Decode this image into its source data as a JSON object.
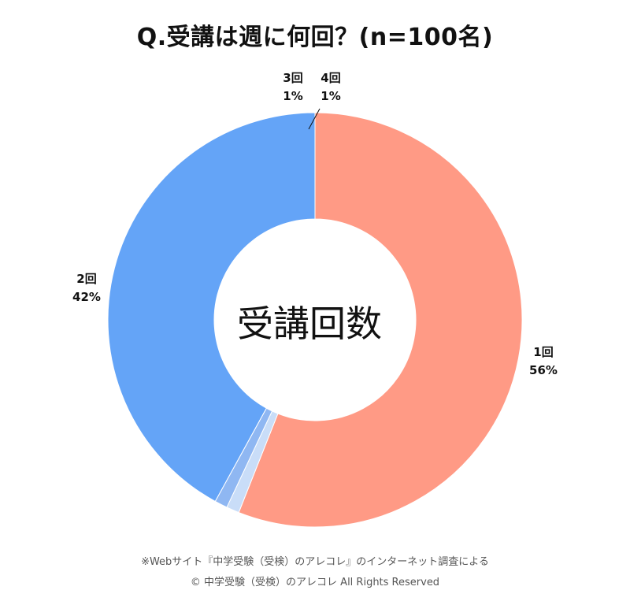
{
  "title": "Q.受講は週に何回？(n=100名)",
  "center_label": "受講回数",
  "footer": {
    "source": "※Webサイト『中学受験（受検）のアレコレ』のインターネット調査による",
    "copyright": "© 中学受験（受検）のアレコレ All Rights Reserved"
  },
  "chart_data": {
    "type": "pie",
    "donut": true,
    "title": "Q.受講は週に何回？(n=100名)",
    "center_text": "受講回数",
    "slices": [
      {
        "label": "1回",
        "value": 56,
        "value_label": "56%",
        "color": "#FF9A85"
      },
      {
        "label": "4回",
        "value": 1,
        "value_label": "1%",
        "color": "#C9DDF8"
      },
      {
        "label": "3回",
        "value": 1,
        "value_label": "1%",
        "color": "#8FB7F2"
      },
      {
        "label": "2回",
        "value": 42,
        "value_label": "42%",
        "color": "#64A4F7"
      }
    ],
    "start": "12 o'clock",
    "direction": "clockwise",
    "legend": "none",
    "labels": "outside"
  }
}
